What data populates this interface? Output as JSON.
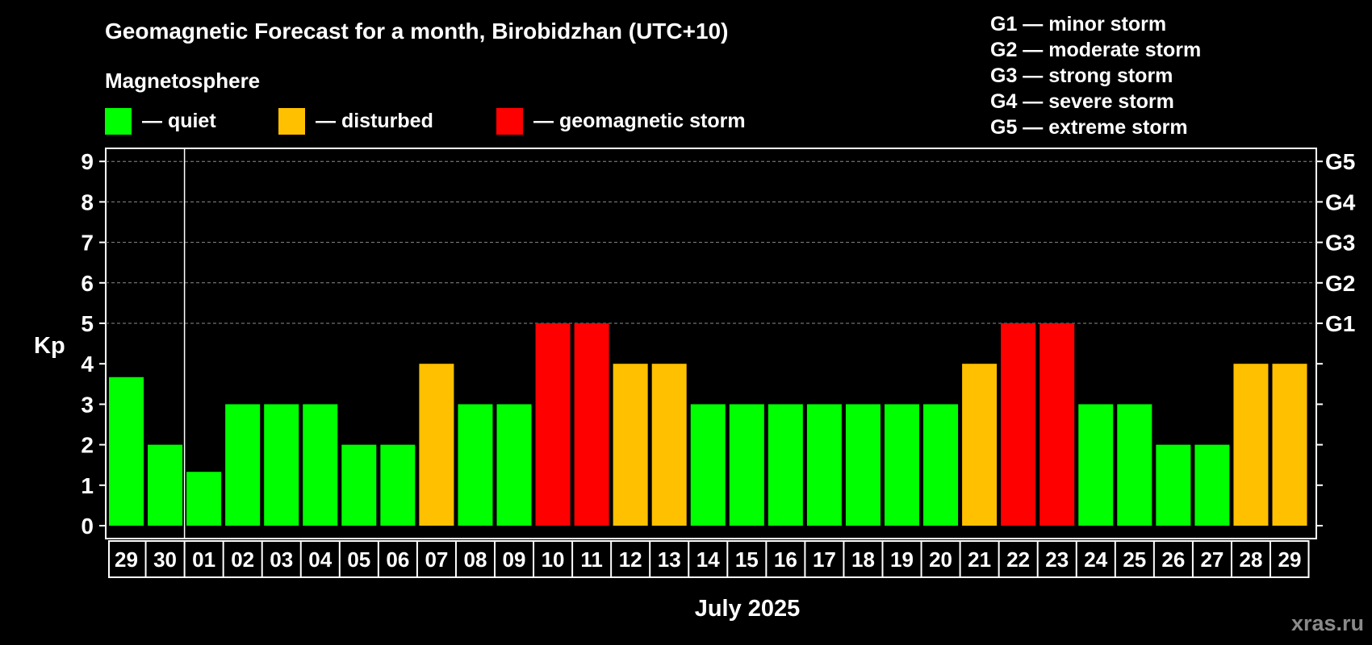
{
  "header": {
    "title": "Geomagnetic Forecast for a month, Birobidzhan (UTC+10)",
    "subtitle": "Magnetosphere",
    "watermark": "xras.ru"
  },
  "legend": {
    "items": [
      {
        "label": "— quiet",
        "color": "#00ff00"
      },
      {
        "label": "— disturbed",
        "color": "#ffc000"
      },
      {
        "label": "— geomagnetic storm",
        "color": "#ff0000"
      }
    ],
    "storm_scale": [
      "G1 — minor storm",
      "G2 — moderate storm",
      "G3 — strong storm",
      "G4 — severe storm",
      "G5 — extreme storm"
    ]
  },
  "chart_data": {
    "type": "bar",
    "title": "Geomagnetic Forecast for a month, Birobidzhan (UTC+10)",
    "xlabel": "July 2025",
    "ylabel": "Kp",
    "ylim": [
      0,
      9
    ],
    "yticks": [
      "0",
      "1",
      "2",
      "3",
      "4",
      "5",
      "6",
      "7",
      "8",
      "9"
    ],
    "grid_from": 5,
    "right_axis": {
      "5": "G1",
      "6": "G2",
      "7": "G3",
      "8": "G4",
      "9": "G5"
    },
    "month_divider_after_index": 1,
    "categories": [
      "29",
      "30",
      "01",
      "02",
      "03",
      "04",
      "05",
      "06",
      "07",
      "08",
      "09",
      "10",
      "11",
      "12",
      "13",
      "14",
      "15",
      "16",
      "17",
      "18",
      "19",
      "20",
      "21",
      "22",
      "23",
      "24",
      "25",
      "26",
      "27",
      "28",
      "29"
    ],
    "values": [
      3.67,
      2,
      1.33,
      3,
      3,
      3,
      2,
      2,
      4,
      3,
      3,
      5,
      5,
      4,
      4,
      3,
      3,
      3,
      3,
      3,
      3,
      3,
      4,
      5,
      5,
      3,
      3,
      2,
      2,
      4,
      4
    ],
    "levels": [
      "quiet",
      "quiet",
      "quiet",
      "quiet",
      "quiet",
      "quiet",
      "quiet",
      "quiet",
      "disturbed",
      "quiet",
      "quiet",
      "storm",
      "storm",
      "disturbed",
      "disturbed",
      "quiet",
      "quiet",
      "quiet",
      "quiet",
      "quiet",
      "quiet",
      "quiet",
      "disturbed",
      "storm",
      "storm",
      "quiet",
      "quiet",
      "quiet",
      "quiet",
      "disturbed",
      "disturbed"
    ],
    "colors": {
      "quiet": "#00ff00",
      "disturbed": "#ffc000",
      "storm": "#ff0000"
    }
  }
}
